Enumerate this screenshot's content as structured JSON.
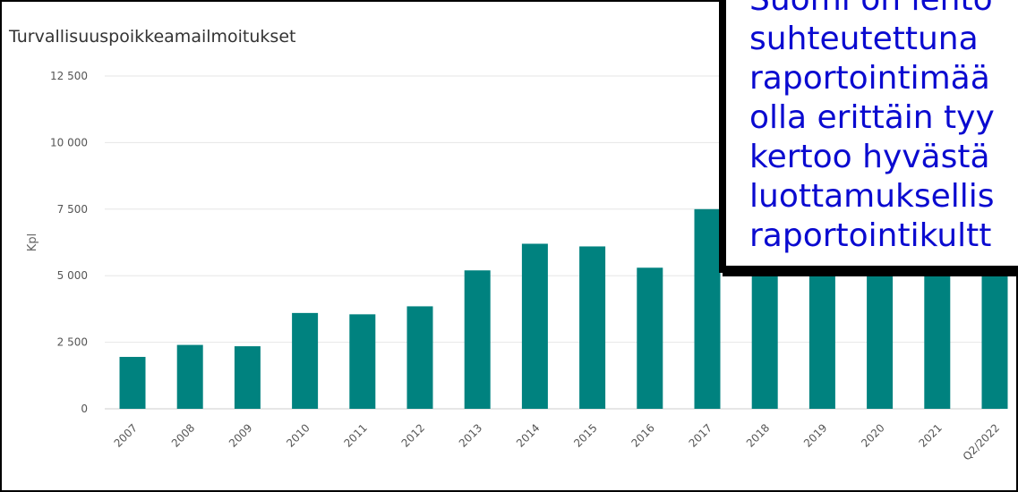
{
  "chart_data": {
    "type": "bar",
    "title": "Turvallisuuspoikkeamailmoitukset",
    "ylabel": "Kpl",
    "xlabel": "",
    "ylim": [
      0,
      12500
    ],
    "yticks": [
      0,
      2500,
      5000,
      7500,
      10000,
      12500
    ],
    "ytick_labels": [
      "0",
      "2 500",
      "5 000",
      "7 500",
      "10 000",
      "12 500"
    ],
    "grid": true,
    "categories": [
      "2007",
      "2008",
      "2009",
      "2010",
      "2011",
      "2012",
      "2013",
      "2014",
      "2015",
      "2016",
      "2017",
      "2018",
      "2019",
      "2020",
      "2021",
      "Q2/2022"
    ],
    "values": [
      1950,
      2400,
      2350,
      3600,
      3550,
      3850,
      5200,
      6200,
      6100,
      5300,
      7500,
      7000,
      7000,
      7000,
      7000,
      7000
    ],
    "bar_color": "#00827f"
  },
  "callout": {
    "lines": [
      "Suomi on lento",
      "suhteutettuna",
      "raportointimää",
      "olla erittäin tyy",
      "kertoo hyvästä",
      "luottamuksellis",
      "raportointikultt"
    ]
  }
}
